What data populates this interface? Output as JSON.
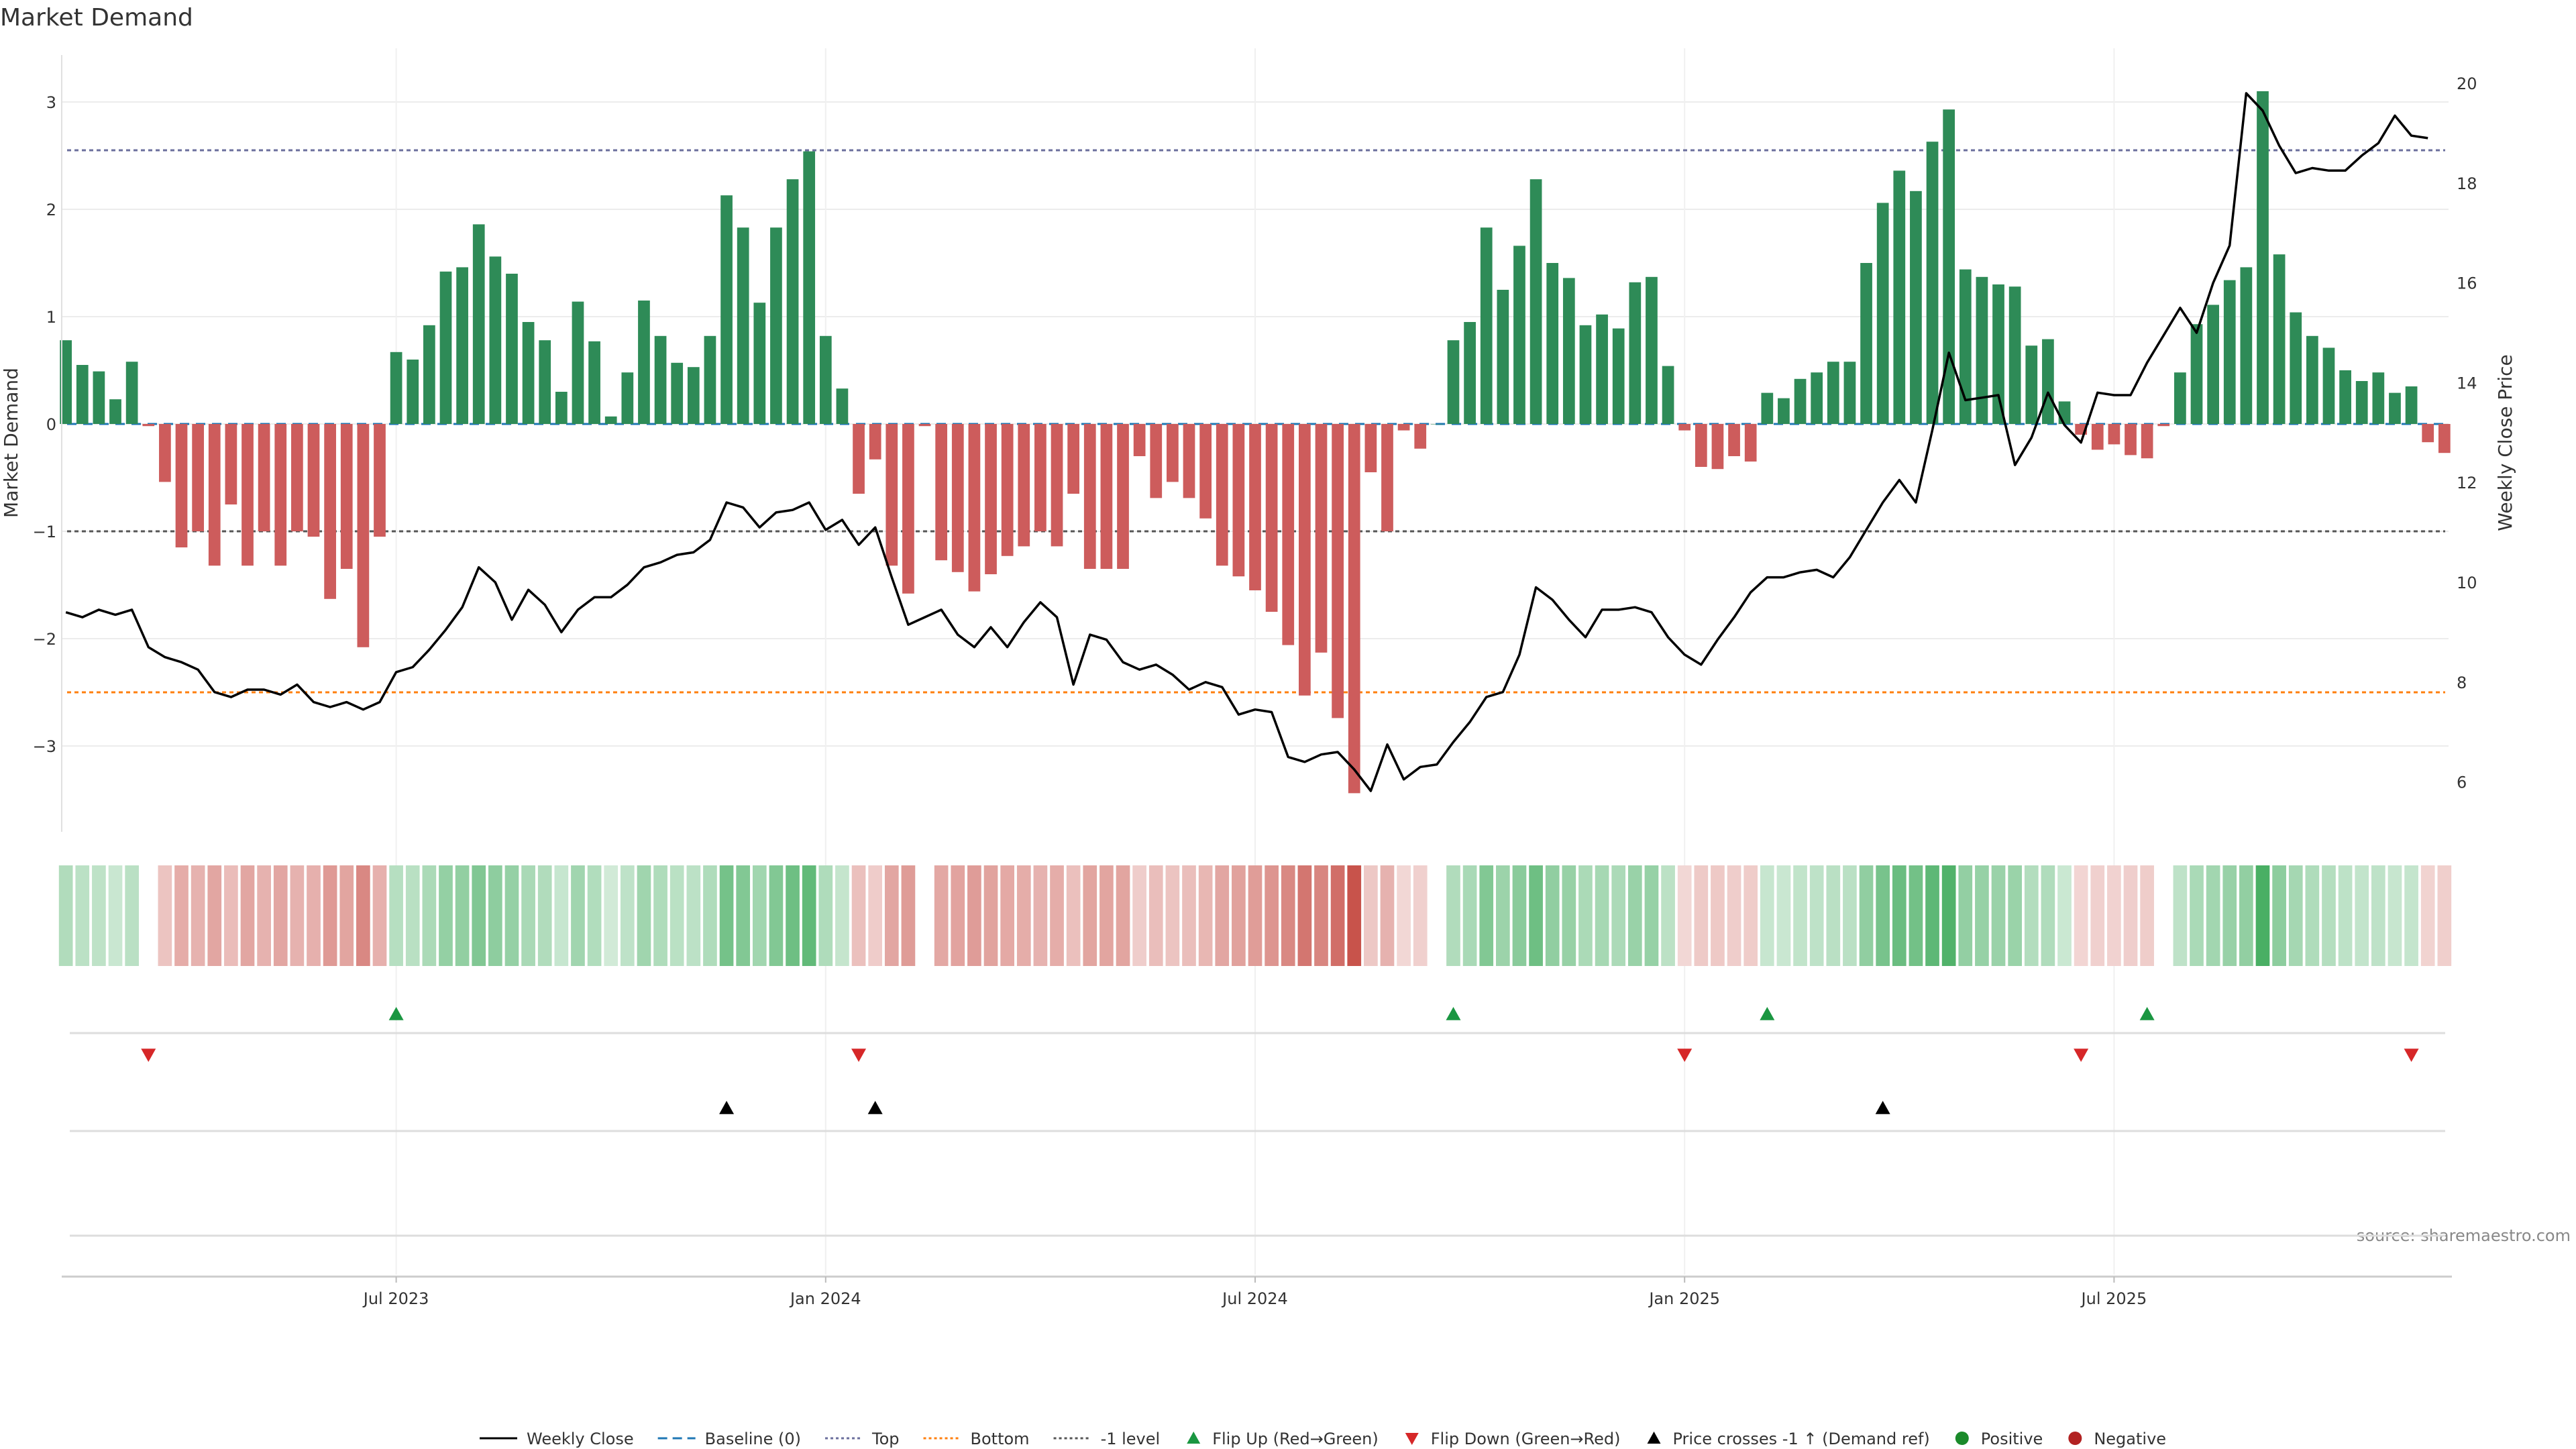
{
  "chart_data": {
    "type": "bar+line",
    "title": "Market Demand",
    "ylabel_left": "Market Demand",
    "ylabel_right": "Weekly Close Price",
    "ylim_left": [
      -3.8,
      3.5
    ],
    "ylim_right": [
      5.0,
      20.7
    ],
    "yticks_left": [
      3,
      2,
      1,
      0,
      -1,
      -2,
      -3
    ],
    "ytick_labels_left": [
      "3",
      "2",
      "1",
      "0",
      "−1",
      "−2",
      "−3"
    ],
    "yticks_right": [
      20,
      18,
      16,
      14,
      12,
      10,
      8,
      6
    ],
    "x_tick_labels": [
      "Jul 2023",
      "Jan 2024",
      "Jul 2024",
      "Jan 2025",
      "Jul 2025"
    ],
    "x_tick_weeks": [
      20,
      46,
      72,
      98,
      124
    ],
    "reference_lines": {
      "top": 2.55,
      "bottom": -2.5,
      "minus_one": -1.0,
      "baseline": 0
    },
    "demand": [
      0.78,
      0.55,
      0.49,
      0.23,
      0.58,
      -0.02,
      -0.54,
      -1.15,
      -1.0,
      -1.32,
      -0.75,
      -1.32,
      -1.0,
      -1.32,
      -1.0,
      -1.05,
      -1.63,
      -1.35,
      -2.08,
      -1.05,
      0.67,
      0.6,
      0.92,
      1.42,
      1.46,
      1.86,
      1.56,
      1.4,
      0.95,
      0.78,
      0.3,
      1.14,
      0.77,
      0.07,
      0.48,
      1.15,
      0.82,
      0.57,
      0.53,
      0.82,
      2.13,
      1.83,
      1.13,
      1.83,
      2.28,
      2.54,
      0.82,
      0.33,
      -0.65,
      -0.33,
      -1.32,
      -1.58,
      -0.02,
      -1.27,
      -1.38,
      -1.56,
      -1.4,
      -1.23,
      -1.14,
      -1.0,
      -1.14,
      -0.65,
      -1.35,
      -1.35,
      -1.35,
      -0.3,
      -0.69,
      -0.54,
      -0.69,
      -0.88,
      -1.32,
      -1.42,
      -1.55,
      -1.75,
      -2.06,
      -2.53,
      -2.13,
      -2.74,
      -3.44,
      -0.45,
      -1.0,
      -0.06,
      -0.23,
      0.0,
      0.78,
      0.95,
      1.83,
      1.25,
      1.66,
      2.28,
      1.5,
      1.36,
      0.92,
      1.02,
      0.89,
      1.32,
      1.37,
      0.54,
      -0.06,
      -0.4,
      -0.42,
      -0.3,
      -0.35,
      0.29,
      0.24,
      0.42,
      0.48,
      0.58,
      0.58,
      1.5,
      2.06,
      2.36,
      2.17,
      2.63,
      2.93,
      1.44,
      1.37,
      1.3,
      1.28,
      0.73,
      0.79,
      0.21,
      -0.1,
      -0.24,
      -0.19,
      -0.29,
      -0.32,
      -0.02,
      0.48,
      0.93,
      1.11,
      1.34,
      1.46,
      3.1,
      1.58,
      1.04,
      0.82,
      0.71,
      0.5,
      0.4,
      0.48,
      0.29,
      0.35,
      -0.17,
      -0.27
    ],
    "weekly_close": [
      9.4,
      9.3,
      9.45,
      9.35,
      9.45,
      8.7,
      8.5,
      8.4,
      8.25,
      7.8,
      7.7,
      7.85,
      7.85,
      7.75,
      7.95,
      7.6,
      7.5,
      7.6,
      7.45,
      7.6,
      8.2,
      8.3,
      8.65,
      9.05,
      9.5,
      10.3,
      10.0,
      9.25,
      9.85,
      9.55,
      9.0,
      9.45,
      9.7,
      9.7,
      9.95,
      10.3,
      10.4,
      10.55,
      10.6,
      10.85,
      11.6,
      11.5,
      11.1,
      11.4,
      11.45,
      11.6,
      11.05,
      11.25,
      10.75,
      11.1,
      10.1,
      9.15,
      9.3,
      9.45,
      8.95,
      8.7,
      9.1,
      8.7,
      9.2,
      9.6,
      9.3,
      7.95,
      8.95,
      8.85,
      8.4,
      8.25,
      8.35,
      8.15,
      7.85,
      8.0,
      7.9,
      7.35,
      7.45,
      7.4,
      6.5,
      6.4,
      6.55,
      6.6,
      6.25,
      5.82,
      6.75,
      6.05,
      6.3,
      6.35,
      6.8,
      7.2,
      7.7,
      7.8,
      8.55,
      9.9,
      9.65,
      9.25,
      8.9,
      9.45,
      9.45,
      9.5,
      9.4,
      8.9,
      8.55,
      8.35,
      8.85,
      9.3,
      9.8,
      10.1,
      10.1,
      10.2,
      10.25,
      10.1,
      10.5,
      11.05,
      11.6,
      12.05,
      11.6,
      13.05,
      14.6,
      13.65,
      13.7,
      13.75,
      12.35,
      12.9,
      13.8,
      13.15,
      12.8,
      13.8,
      13.75,
      13.75,
      14.4,
      14.95,
      15.5,
      15.0,
      16.0,
      16.75,
      19.8,
      19.45,
      18.75,
      18.2,
      18.3,
      18.25,
      18.25,
      18.55,
      18.8,
      19.35,
      18.95,
      18.9
    ],
    "flip_up_weeks": [
      20,
      84,
      103,
      126
    ],
    "flip_down_weeks": [
      5,
      48,
      98,
      122,
      142
    ],
    "price_cross_weeks": [
      40,
      49,
      110
    ],
    "source_text": "source: sharemaestro.com",
    "legend": [
      {
        "label": "Weekly Close",
        "kind": "line",
        "color": "#000000"
      },
      {
        "label": "Baseline (0)",
        "kind": "dash",
        "color": "#1f77b4"
      },
      {
        "label": "Top",
        "kind": "dot",
        "color": "#6b6f9c"
      },
      {
        "label": "Bottom",
        "kind": "dot",
        "color": "#ff7f0e"
      },
      {
        "label": "-1 level",
        "kind": "dot",
        "color": "#555555"
      },
      {
        "label": "Flip Up (Red→Green)",
        "kind": "tri-up",
        "color": "#1a9641"
      },
      {
        "label": "Flip Down (Green→Red)",
        "kind": "tri-down",
        "color": "#d62728"
      },
      {
        "label": "Price crosses -1 ↑ (Demand ref)",
        "kind": "tri-up",
        "color": "#000000"
      },
      {
        "label": "Positive",
        "kind": "circle",
        "color": "#1a8a2a"
      },
      {
        "label": "Negative",
        "kind": "circle",
        "color": "#b22222"
      }
    ],
    "colors": {
      "positive": "#2e8b57",
      "negative": "#cd5c5c",
      "grid": "#ececec"
    }
  }
}
